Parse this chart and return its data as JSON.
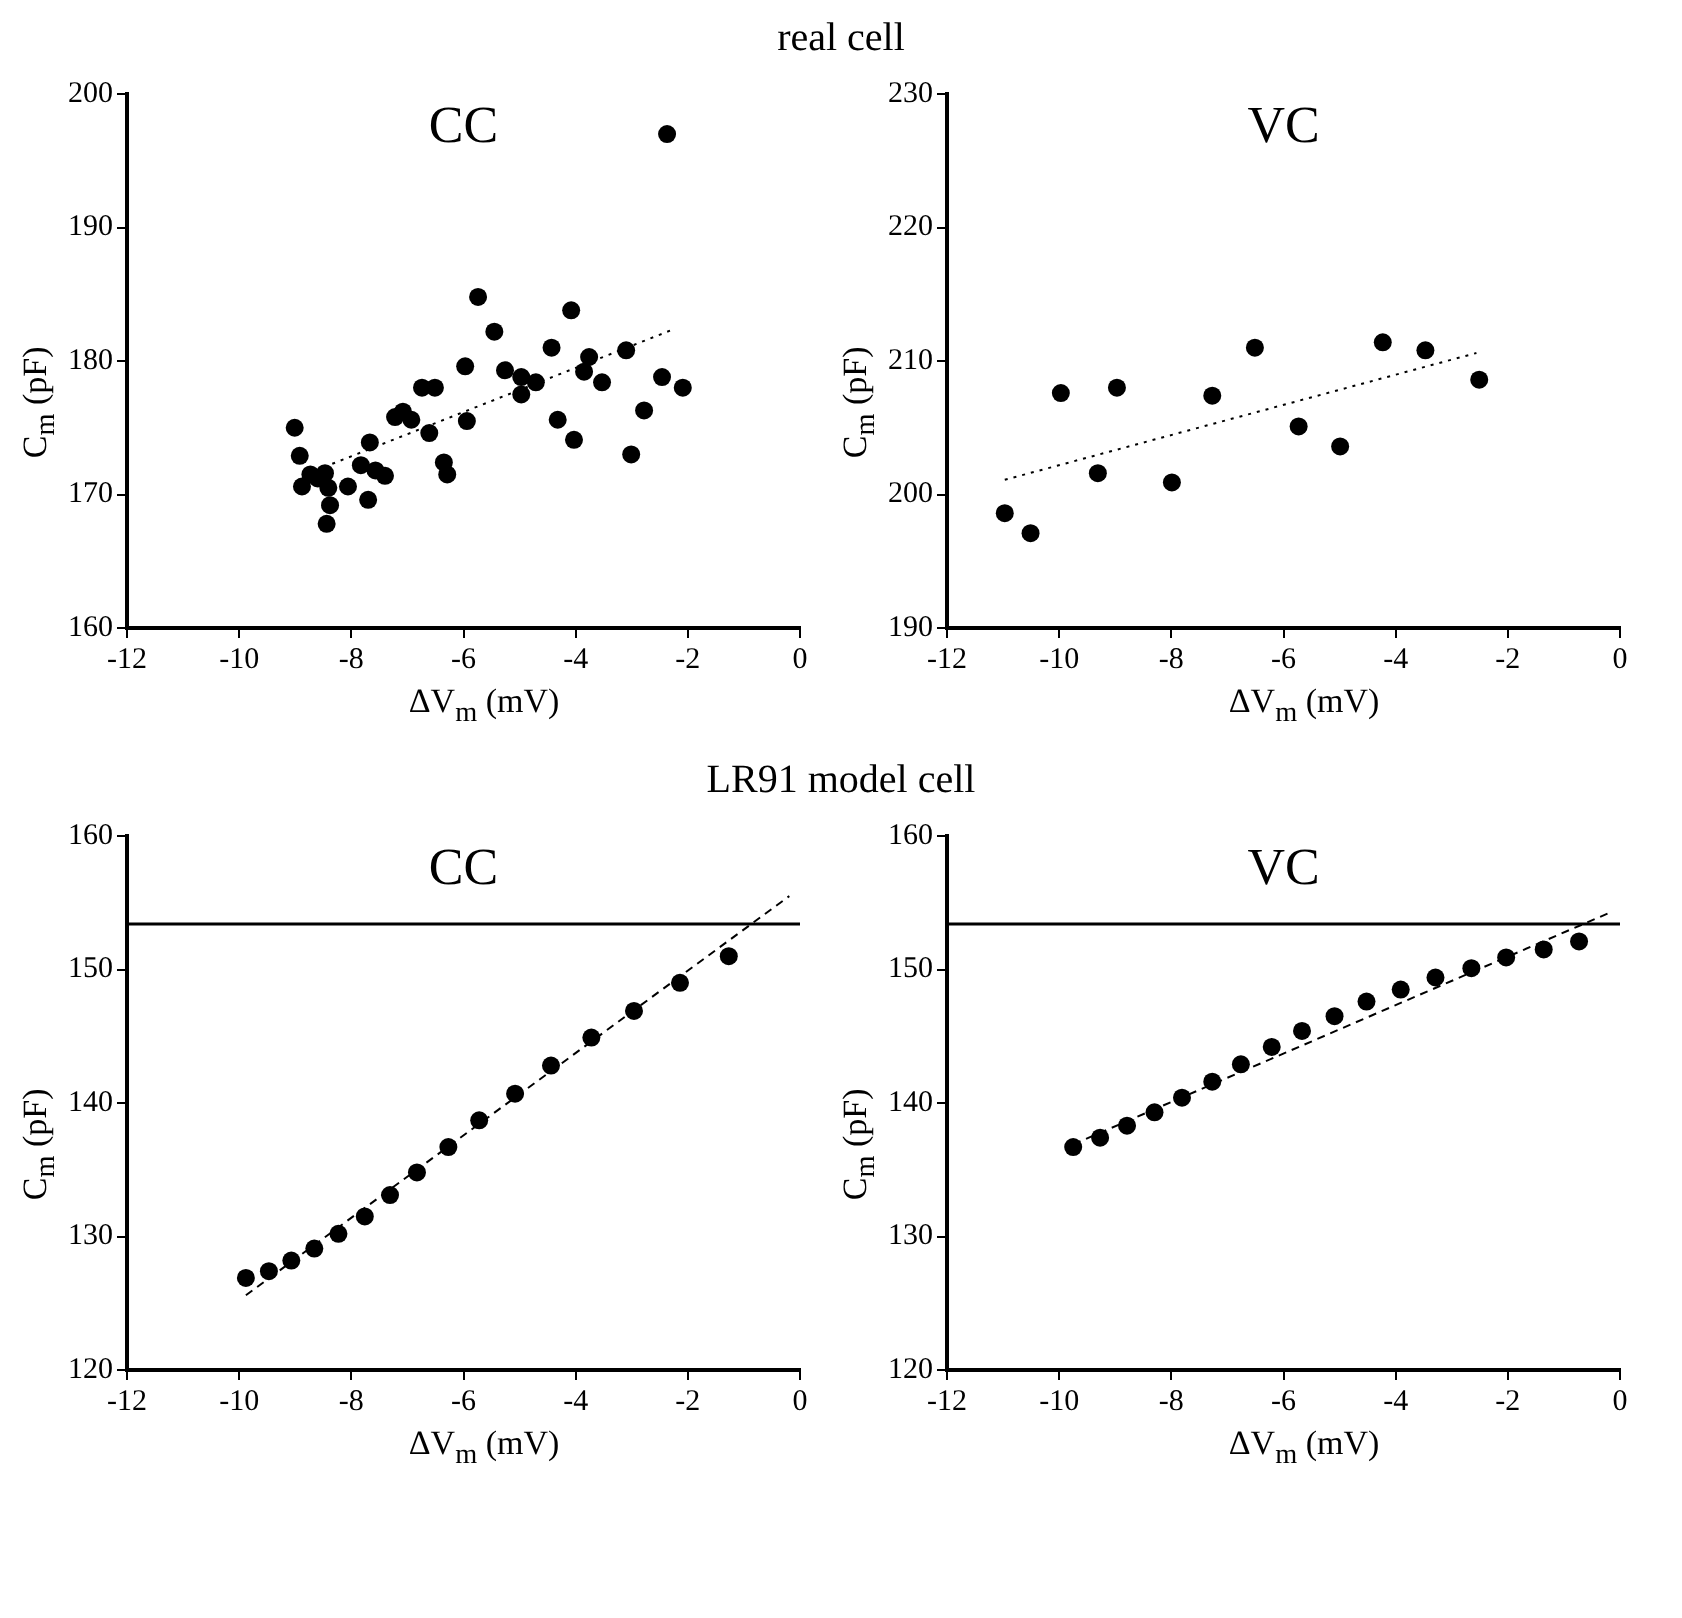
{
  "chart_data": [
    {
      "type": "scatter",
      "title": "CC",
      "annotations": [
        "real cell"
      ],
      "xlabel": "ΔV$_{m}$ (mV)",
      "ylabel": "C$_{m}$ (pF)",
      "xlim": [
        -12,
        0
      ],
      "xticks": [
        -12,
        -10,
        -8,
        -6,
        -4,
        -2,
        0
      ],
      "ylim": [
        160,
        200
      ],
      "yticks": [
        160,
        170,
        180,
        190,
        200
      ],
      "grid": false,
      "legend": false,
      "marker": "circle",
      "series": [
        {
          "type": "scatter",
          "color": "#000000",
          "x": [
            -9.01,
            -8.92,
            -8.88,
            -8.73,
            -8.6,
            -8.47,
            -8.41,
            -8.38,
            -8.44,
            -8.06,
            -7.83,
            -7.67,
            -7.7,
            -7.57,
            -7.4,
            -7.22,
            -7.08,
            -6.93,
            -6.74,
            -6.51,
            -6.61,
            -6.35,
            -6.29,
            -5.97,
            -5.94,
            -5.74,
            -5.45,
            -5.26,
            -4.97,
            -4.97,
            -4.71,
            -4.43,
            -4.32,
            -4.08,
            -4.03,
            -3.85,
            -3.76,
            -3.53,
            -3.1,
            -3.01,
            -2.78,
            -2.46,
            -2.37,
            -2.09
          ],
          "values": [
            175.0,
            172.9,
            170.6,
            171.5,
            171.2,
            171.6,
            170.5,
            169.2,
            167.8,
            170.6,
            172.2,
            173.9,
            169.6,
            171.8,
            171.4,
            175.8,
            176.2,
            175.6,
            178.0,
            178.0,
            174.6,
            172.4,
            171.5,
            179.6,
            175.5,
            184.8,
            182.2,
            179.3,
            178.8,
            177.5,
            178.4,
            181.0,
            175.6,
            183.8,
            174.1,
            179.2,
            180.3,
            178.4,
            180.8,
            173.0,
            176.3,
            178.8,
            197.0,
            178.0
          ]
        },
        {
          "type": "line",
          "color": "#000000",
          "line_style": "dotted",
          "marker": "none",
          "x": [
            -8.34,
            -2.24
          ],
          "values": [
            172.3,
            182.4
          ]
        }
      ]
    },
    {
      "type": "scatter",
      "title": "VC",
      "xlabel": "ΔV$_{m}$ (mV)",
      "ylabel": "C$_{m}$ (pF)",
      "xlim": [
        -12,
        0
      ],
      "xticks": [
        -12,
        -10,
        -8,
        -6,
        -4,
        -2,
        0
      ],
      "ylim": [
        190,
        230
      ],
      "yticks": [
        190,
        200,
        210,
        220,
        230
      ],
      "grid": false,
      "legend": false,
      "marker": "circle",
      "series": [
        {
          "type": "scatter",
          "color": "#000000",
          "x": [
            -10.97,
            -10.51,
            -9.97,
            -9.31,
            -8.97,
            -7.99,
            -7.27,
            -6.51,
            -5.73,
            -4.99,
            -4.23,
            -3.47,
            -2.51
          ],
          "values": [
            198.6,
            197.1,
            207.6,
            201.6,
            208.0,
            200.9,
            207.4,
            211.0,
            205.1,
            203.6,
            211.4,
            210.8,
            208.6
          ]
        },
        {
          "type": "line",
          "color": "#000000",
          "line_style": "dotted",
          "marker": "none",
          "x": [
            -10.97,
            -2.56
          ],
          "values": [
            201.1,
            210.6
          ]
        }
      ]
    },
    {
      "type": "scatter",
      "title": "CC",
      "annotations": [
        "LR91 model cell"
      ],
      "xlabel": "ΔV$_{m}$ (mV)",
      "ylabel": "C$_{m}$ (pF)",
      "xlim": [
        -12,
        0
      ],
      "xticks": [
        -12,
        -10,
        -8,
        -6,
        -4,
        -2,
        0
      ],
      "ylim": [
        120,
        160
      ],
      "yticks": [
        120,
        130,
        140,
        150,
        160
      ],
      "grid": false,
      "legend": false,
      "marker": "circle",
      "ref_lines": [
        {
          "axis": "y",
          "value": 153.4,
          "color": "#000000",
          "line_style": "solid"
        }
      ],
      "series": [
        {
          "type": "scatter",
          "color": "#000000",
          "x": [
            -9.88,
            -9.47,
            -9.07,
            -8.66,
            -8.23,
            -7.76,
            -7.31,
            -6.83,
            -6.27,
            -5.72,
            -5.08,
            -4.44,
            -3.72,
            -2.96,
            -2.14,
            -1.27
          ],
          "values": [
            126.9,
            127.4,
            128.2,
            129.1,
            130.2,
            131.5,
            133.1,
            134.8,
            136.7,
            138.7,
            140.7,
            142.8,
            144.9,
            146.9,
            149.0,
            151.0
          ]
        },
        {
          "type": "line",
          "color": "#000000",
          "line_style": "dashed",
          "marker": "none",
          "x": [
            -9.88,
            -0.19
          ],
          "values": [
            125.6,
            155.5
          ]
        }
      ]
    },
    {
      "type": "scatter",
      "title": "VC",
      "xlabel": "ΔV$_{m}$ (mV)",
      "ylabel": "C$_{m}$ (pF)",
      "xlim": [
        -12,
        0
      ],
      "xticks": [
        -12,
        -10,
        -8,
        -6,
        -4,
        -2,
        0
      ],
      "ylim": [
        120,
        160
      ],
      "yticks": [
        120,
        130,
        140,
        150,
        160
      ],
      "grid": false,
      "legend": false,
      "marker": "circle",
      "ref_lines": [
        {
          "axis": "y",
          "value": 153.4,
          "color": "#000000",
          "line_style": "solid"
        }
      ],
      "series": [
        {
          "type": "scatter",
          "color": "#000000",
          "x": [
            -9.75,
            -9.27,
            -8.79,
            -8.3,
            -7.81,
            -7.27,
            -6.76,
            -6.21,
            -5.67,
            -5.09,
            -4.52,
            -3.91,
            -3.29,
            -2.65,
            -2.03,
            -1.36,
            -0.73
          ],
          "values": [
            136.7,
            137.4,
            138.3,
            139.3,
            140.4,
            141.6,
            142.9,
            144.2,
            145.4,
            146.5,
            147.6,
            148.5,
            149.4,
            150.1,
            150.9,
            151.5,
            152.1
          ]
        },
        {
          "type": "line",
          "color": "#000000",
          "line_style": "dashed",
          "marker": "none",
          "x": [
            -9.75,
            -0.16
          ],
          "values": [
            136.9,
            154.3
          ]
        }
      ]
    }
  ]
}
